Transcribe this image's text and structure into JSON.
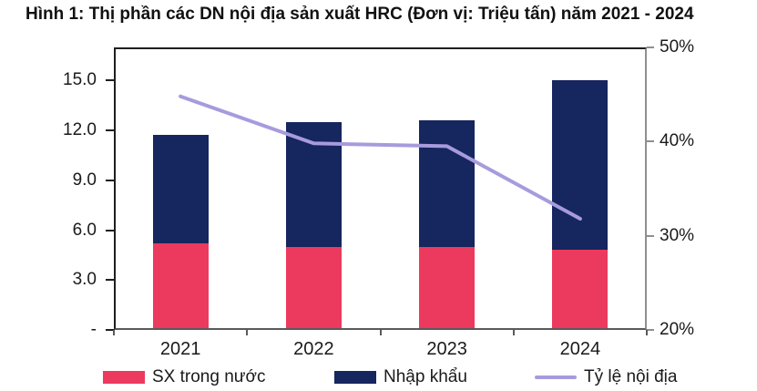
{
  "title": "Hình 1: Thị phần các DN nội địa sản xuất HRC (Đơn vị: Triệu tấn) năm 2021 - 2024",
  "colors": {
    "bar_domestic": "#EC3A5E",
    "bar_import": "#16265E",
    "line_ratio": "#A79BDD",
    "axis_dark": "#1f1f1f",
    "axis_gray": "#8f8f8f",
    "text": "#1a1a1a"
  },
  "chart_data": {
    "type": "bar",
    "subtype": "stacked-bar-with-line",
    "title": "Hình 1: Thị phần các DN nội địa sản xuất HRC (Đơn vị: Triệu tấn) năm 2021 - 2024",
    "categories": [
      "2021",
      "2022",
      "2023",
      "2024"
    ],
    "series": [
      {
        "name": "SX trong nước",
        "type": "bar",
        "stack": "total",
        "axis": "left",
        "color": "#EC3A5E",
        "values": [
          5.1,
          4.9,
          4.9,
          4.7
        ]
      },
      {
        "name": "Nhập khẩu",
        "type": "bar",
        "stack": "total",
        "axis": "left",
        "color": "#16265E",
        "values": [
          6.5,
          7.5,
          7.6,
          10.2
        ]
      },
      {
        "name": "Tỷ lệ nội địa",
        "type": "line",
        "axis": "right",
        "color": "#A79BDD",
        "values": [
          45,
          40,
          39.7,
          32
        ]
      }
    ],
    "stack_totals": [
      11.6,
      12.4,
      12.5,
      14.9
    ],
    "left_axis": {
      "unit": "Triệu tấn",
      "range": [
        0,
        17
      ],
      "ticks": [
        {
          "v": 15,
          "label": "15.0"
        },
        {
          "v": 12,
          "label": "12.0"
        },
        {
          "v": 9,
          "label": "9.0"
        },
        {
          "v": 6,
          "label": "6.0"
        },
        {
          "v": 3,
          "label": "3.0"
        },
        {
          "v": 0,
          "label": "-"
        }
      ]
    },
    "right_axis": {
      "unit": "%",
      "range": [
        20,
        50
      ],
      "ticks": [
        {
          "v": 50,
          "label": "50%"
        },
        {
          "v": 40,
          "label": "40%"
        },
        {
          "v": 30,
          "label": "30%"
        },
        {
          "v": 20,
          "label": "20%"
        }
      ]
    },
    "grid": false,
    "legend_position": "bottom"
  },
  "legend": {
    "items": [
      {
        "label": "SX trong nước",
        "swatch": "bar",
        "color": "#EC3A5E"
      },
      {
        "label": "Nhập khẩu",
        "swatch": "bar",
        "color": "#16265E"
      },
      {
        "label": "Tỷ lệ nội địa",
        "swatch": "line",
        "color": "#A79BDD"
      }
    ]
  }
}
